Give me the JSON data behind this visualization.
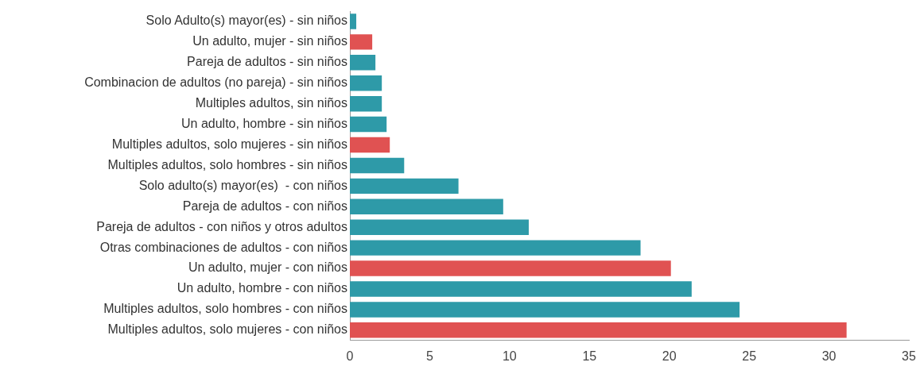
{
  "chart_data": {
    "type": "bar",
    "orientation": "horizontal",
    "categories": [
      "Solo Adulto(s) mayor(es) - sin niños",
      "Un adulto, mujer - sin niños",
      "Pareja de adultos - sin niños",
      "Combinacion de adultos (no pareja) - sin niños",
      "Multiples adultos, sin niños",
      "Un adulto, hombre - sin niños",
      "Multiples adultos, solo mujeres - sin niños",
      "Multiples adultos, solo hombres - sin niños",
      "Solo adulto(s) mayor(es)  - con niños",
      "Pareja de adultos - con niños",
      "Pareja de adultos - con niños y otros adultos",
      "Otras combinaciones de adultos - con niños",
      "Un adulto, mujer - con niños",
      "Un adulto, hombre - con niños",
      "Multiples adultos, solo hombres - con niños",
      "Multiples adultos, solo mujeres - con niños"
    ],
    "values": [
      0.4,
      1.4,
      1.6,
      2.0,
      2.0,
      2.3,
      2.5,
      3.4,
      6.8,
      9.6,
      11.2,
      18.2,
      20.1,
      21.4,
      24.4,
      31.1
    ],
    "colors": [
      "#2e9aa8",
      "#e05252",
      "#2e9aa8",
      "#2e9aa8",
      "#2e9aa8",
      "#2e9aa8",
      "#e05252",
      "#2e9aa8",
      "#2e9aa8",
      "#2e9aa8",
      "#2e9aa8",
      "#2e9aa8",
      "#e05252",
      "#2e9aa8",
      "#2e9aa8",
      "#e05252"
    ],
    "xlim": [
      0,
      35
    ],
    "xticks": [
      0,
      5,
      10,
      15,
      20,
      25,
      30,
      35
    ],
    "grid": false,
    "legend": false
  }
}
